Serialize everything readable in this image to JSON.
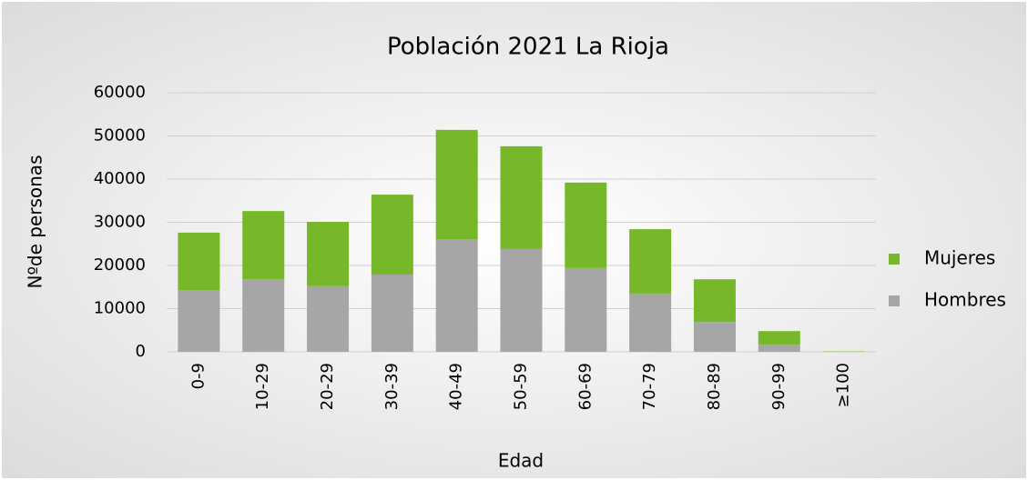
{
  "chart_data": {
    "type": "stacked_bar",
    "title": "Población 2021 La Rioja",
    "x_label": "Edad",
    "y_label": "Nºde personas",
    "categories": [
      "0-9",
      "10-29",
      "20-29",
      "30-39",
      "40-49",
      "50-59",
      "60-69",
      "70-79",
      "80-89",
      "90-99",
      "≥100"
    ],
    "series": [
      {
        "name": "Hombres",
        "color": "#a6a6a6",
        "values": [
          14300,
          16800,
          15200,
          17900,
          26100,
          23800,
          19400,
          13500,
          6900,
          1700,
          20
        ]
      },
      {
        "name": "Mujeres",
        "color": "#76b82a",
        "values": [
          13300,
          15800,
          14900,
          18500,
          25300,
          23800,
          19800,
          14900,
          9900,
          3100,
          80
        ]
      }
    ],
    "ylim": [
      0,
      60000
    ],
    "yticks": [
      0,
      10000,
      20000,
      30000,
      40000,
      50000,
      60000
    ],
    "grid": true,
    "legend": "right"
  }
}
